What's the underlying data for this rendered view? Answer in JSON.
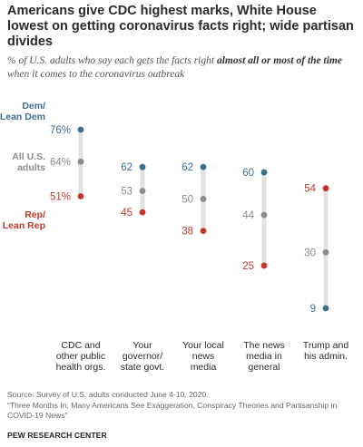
{
  "header": {
    "title": "Americans give CDC highest marks, White House lowest on getting coronavirus facts right; wide partisan divides",
    "subtitle_pre": "% of U.S. adults who say each gets the facts right ",
    "subtitle_bold": "almost all or most of the time",
    "subtitle_post": " when it comes to the coronavirus outbreak"
  },
  "chart_data": {
    "type": "dot",
    "categories": [
      "CDC and other public health orgs.",
      "Your governor/ state govt.",
      "Your local news media",
      "The news media in general",
      "Trump and his admin."
    ],
    "category_lines": [
      [
        "CDC and",
        "other public",
        "health orgs."
      ],
      [
        "Your",
        "governor/",
        "state govt."
      ],
      [
        "Your local",
        "news",
        "media"
      ],
      [
        "The news",
        "media in",
        "general"
      ],
      [
        "Trump and",
        "his admin."
      ]
    ],
    "series": [
      {
        "name": "Dem/ Lean Dem",
        "color": "#3e6e8e",
        "values": [
          76,
          62,
          62,
          60,
          9
        ],
        "labels": [
          "76%",
          "62",
          "62",
          "60",
          "9"
        ],
        "name_lines": [
          "Dem/",
          "Lean Dem"
        ]
      },
      {
        "name": "All U.S. adults",
        "color": "#8c8c8c",
        "values": [
          64,
          53,
          50,
          44,
          30
        ],
        "labels": [
          "64%",
          "53",
          "50",
          "44",
          "30"
        ],
        "name_lines": [
          "All U.S.",
          "adults"
        ]
      },
      {
        "name": "Rep/ Lean Rep",
        "color": "#c0392b",
        "values": [
          51,
          45,
          38,
          25,
          54
        ],
        "labels": [
          "51%",
          "45",
          "38",
          "25",
          "54"
        ],
        "name_lines": [
          "Rep/",
          "Lean Rep"
        ]
      }
    ],
    "ylim": [
      9,
      76
    ],
    "grid": false
  },
  "footer": {
    "source": "Source: Survey of U.S. adults conducted June 4-10, 2020.",
    "report": "“Three Months In, Many Americans See Exaggeration, Conspiracy Theories and Partisanship in COVID-19 News”",
    "brand": "PEW RESEARCH CENTER"
  }
}
